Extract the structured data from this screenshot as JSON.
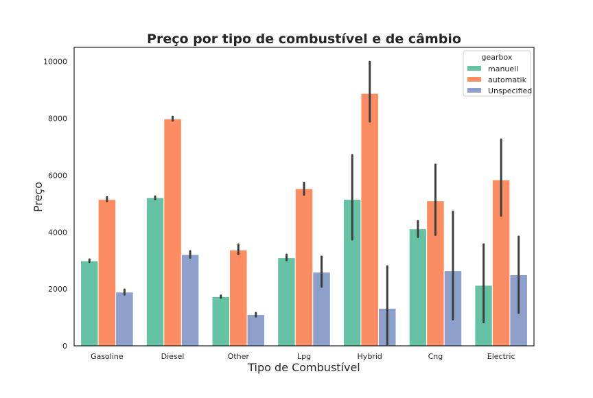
{
  "chart_data": {
    "type": "bar",
    "title": "Preço por tipo de combustível e de câmbio",
    "xlabel": "Tipo de Combustível",
    "ylabel": "Preço",
    "ylim": [
      0,
      10500
    ],
    "yticks": [
      0,
      2000,
      4000,
      6000,
      8000,
      10000
    ],
    "categories": [
      "Gasoline",
      "Diesel",
      "Other",
      "Lpg",
      "Hybrid",
      "Cng",
      "Electric"
    ],
    "legend": {
      "title": "gearbox",
      "position": "top-right"
    },
    "grid": false,
    "series": [
      {
        "name": "manuell",
        "color": "#66c2a5",
        "values": [
          2990,
          5210,
          1730,
          3100,
          5150,
          4110,
          2130
        ],
        "ci": [
          [
            2950,
            3040
          ],
          [
            5160,
            5260
          ],
          [
            1690,
            1770
          ],
          [
            3010,
            3210
          ],
          [
            3740,
            6710
          ],
          [
            3830,
            4390
          ],
          [
            830,
            3570
          ]
        ]
      },
      {
        "name": "automatik",
        "color": "#fc8d62",
        "values": [
          5150,
          7980,
          3370,
          5530,
          8880,
          5100,
          5840
        ],
        "ci": [
          [
            5090,
            5230
          ],
          [
            7920,
            8060
          ],
          [
            3220,
            3570
          ],
          [
            5310,
            5740
          ],
          [
            7890,
            9990
          ],
          [
            3900,
            6380
          ],
          [
            4580,
            7260
          ]
        ]
      },
      {
        "name": "Unspecified",
        "color": "#8da0cb",
        "values": [
          1890,
          3210,
          1100,
          2590,
          1320,
          2640,
          2500
        ],
        "ci": [
          [
            1800,
            1980
          ],
          [
            3100,
            3330
          ],
          [
            1030,
            1160
          ],
          [
            2080,
            3140
          ],
          [
            50,
            2800
          ],
          [
            930,
            4720
          ],
          [
            1160,
            3840
          ]
        ]
      }
    ]
  }
}
